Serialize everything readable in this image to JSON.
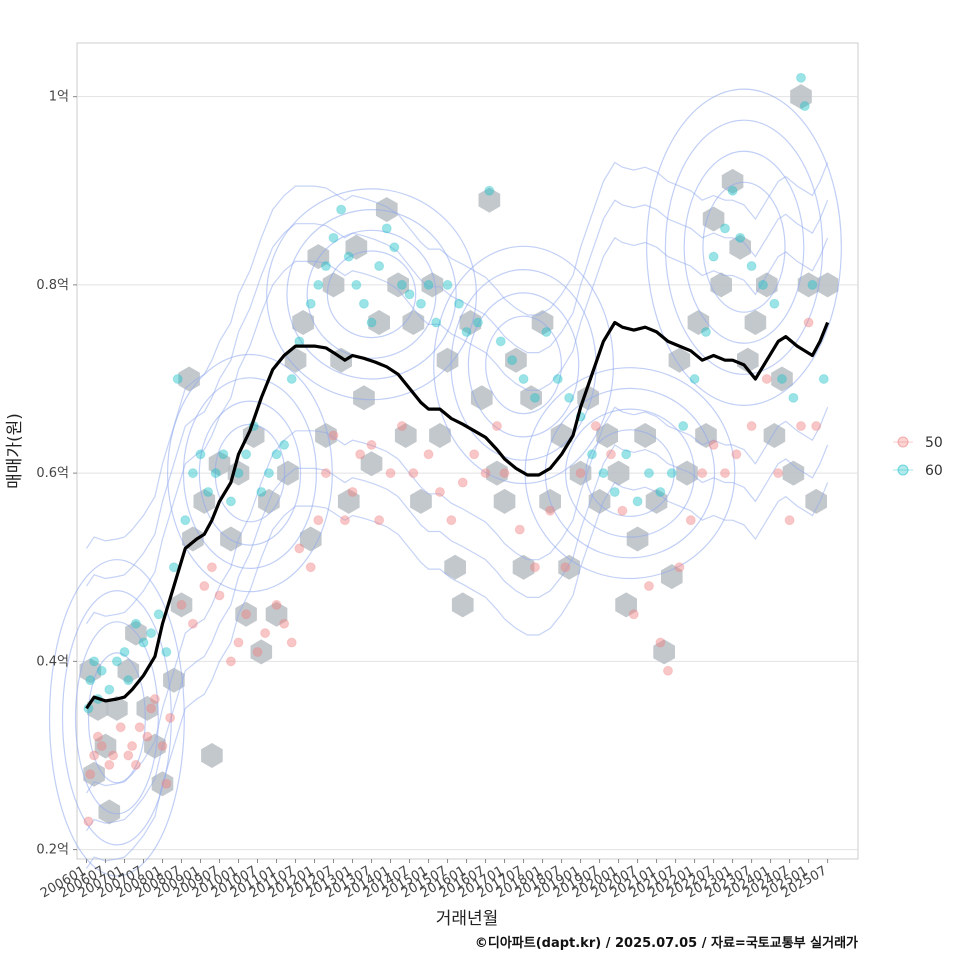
{
  "chart_data": {
    "type": "scatter",
    "title": "",
    "xlabel": "거래년월",
    "ylabel": "매매가(원)",
    "caption": "©디아파트(dapt.kr) / 2025.07.05 / 자료=국토교통부 실거래가",
    "x_tick_labels": [
      "200601",
      "200607",
      "200701",
      "200707",
      "200801",
      "200807",
      "200901",
      "200907",
      "201001",
      "201007",
      "201101",
      "201107",
      "201201",
      "201207",
      "201301",
      "201307",
      "201401",
      "201407",
      "201501",
      "201507",
      "201601",
      "201607",
      "201701",
      "201707",
      "201801",
      "201807",
      "201901",
      "201907",
      "202001",
      "202007",
      "202101",
      "202107",
      "202201",
      "202207",
      "202301",
      "202307",
      "202401",
      "202407",
      "202501",
      "202507"
    ],
    "y_ticks": [
      {
        "value": 0.2,
        "label": "0.2억"
      },
      {
        "value": 0.4,
        "label": "0.4억"
      },
      {
        "value": 0.6,
        "label": "0.6억"
      },
      {
        "value": 0.8,
        "label": "0.8억"
      },
      {
        "value": 1.0,
        "label": "1억"
      }
    ],
    "xlim": [
      2005.75,
      2026.3
    ],
    "ylim": [
      0.19,
      1.057
    ],
    "legend": {
      "position": "right",
      "entries": [
        {
          "label": "50",
          "color": "#f08080"
        },
        {
          "label": "60",
          "color": "#20c0c8"
        }
      ]
    },
    "colors": {
      "area_50": "#f08080",
      "area_60": "#20c0c8",
      "hexbin": "#b9bec4",
      "contour": "#8ea8ee",
      "trend": "#000000",
      "grid": "#e2e2e2",
      "frame": "#cccccc"
    },
    "trend_line": {
      "name": "moving-average",
      "x": [
        2006.0,
        2006.2,
        2006.5,
        2006.8,
        2007.0,
        2007.2,
        2007.5,
        2007.8,
        2008.0,
        2008.3,
        2008.6,
        2008.9,
        2009.1,
        2009.3,
        2009.5,
        2009.8,
        2010.0,
        2010.3,
        2010.6,
        2010.9,
        2011.2,
        2011.5,
        2011.8,
        2012.0,
        2012.3,
        2012.5,
        2012.8,
        2013.0,
        2013.3,
        2013.6,
        2013.9,
        2014.2,
        2014.5,
        2014.8,
        2015.0,
        2015.3,
        2015.6,
        2015.9,
        2016.2,
        2016.5,
        2016.8,
        2017.0,
        2017.3,
        2017.6,
        2017.9,
        2018.2,
        2018.5,
        2018.8,
        2019.0,
        2019.3,
        2019.6,
        2019.9,
        2020.1,
        2020.4,
        2020.7,
        2021.0,
        2021.3,
        2021.6,
        2021.9,
        2022.2,
        2022.5,
        2022.8,
        2023.0,
        2023.3,
        2023.6,
        2023.9,
        2024.2,
        2024.4,
        2024.7,
        2024.9,
        2025.1,
        2025.3,
        2025.5
      ],
      "y": [
        0.35,
        0.362,
        0.358,
        0.36,
        0.362,
        0.37,
        0.385,
        0.405,
        0.44,
        0.48,
        0.52,
        0.53,
        0.535,
        0.55,
        0.57,
        0.59,
        0.62,
        0.645,
        0.68,
        0.71,
        0.725,
        0.735,
        0.735,
        0.735,
        0.733,
        0.728,
        0.72,
        0.725,
        0.722,
        0.718,
        0.713,
        0.705,
        0.69,
        0.675,
        0.668,
        0.668,
        0.658,
        0.652,
        0.645,
        0.638,
        0.625,
        0.615,
        0.605,
        0.598,
        0.598,
        0.605,
        0.62,
        0.64,
        0.67,
        0.705,
        0.74,
        0.76,
        0.755,
        0.752,
        0.755,
        0.75,
        0.74,
        0.735,
        0.73,
        0.72,
        0.725,
        0.72,
        0.72,
        0.715,
        0.7,
        0.72,
        0.74,
        0.745,
        0.735,
        0.73,
        0.725,
        0.74,
        0.76
      ]
    },
    "contour_centers": [
      {
        "x": 2006.8,
        "y": 0.34,
        "rx": 0.9,
        "ry": 0.06
      },
      {
        "x": 2010.3,
        "y": 0.6,
        "rx": 1.1,
        "ry": 0.045
      },
      {
        "x": 2013.5,
        "y": 0.79,
        "rx": 1.4,
        "ry": 0.04
      },
      {
        "x": 2017.5,
        "y": 0.715,
        "rx": 1.2,
        "ry": 0.045
      },
      {
        "x": 2020.3,
        "y": 0.6,
        "rx": 1.4,
        "ry": 0.04
      },
      {
        "x": 2023.3,
        "y": 0.84,
        "rx": 1.3,
        "ry": 0.06
      }
    ],
    "series": [
      {
        "name": "50",
        "color": "#f08080",
        "points": [
          [
            2006.05,
            0.23
          ],
          [
            2006.1,
            0.28
          ],
          [
            2006.2,
            0.3
          ],
          [
            2006.3,
            0.32
          ],
          [
            2006.4,
            0.31
          ],
          [
            2006.6,
            0.29
          ],
          [
            2006.7,
            0.3
          ],
          [
            2006.9,
            0.33
          ],
          [
            2007.1,
            0.3
          ],
          [
            2007.2,
            0.31
          ],
          [
            2007.3,
            0.29
          ],
          [
            2007.4,
            0.33
          ],
          [
            2007.6,
            0.32
          ],
          [
            2007.7,
            0.35
          ],
          [
            2007.8,
            0.36
          ],
          [
            2008.0,
            0.31
          ],
          [
            2008.1,
            0.27
          ],
          [
            2008.2,
            0.34
          ],
          [
            2008.5,
            0.46
          ],
          [
            2008.8,
            0.44
          ],
          [
            2009.1,
            0.48
          ],
          [
            2009.3,
            0.5
          ],
          [
            2009.5,
            0.47
          ],
          [
            2009.8,
            0.4
          ],
          [
            2010.0,
            0.42
          ],
          [
            2010.2,
            0.45
          ],
          [
            2010.5,
            0.41
          ],
          [
            2010.7,
            0.43
          ],
          [
            2011.0,
            0.46
          ],
          [
            2011.2,
            0.44
          ],
          [
            2011.4,
            0.42
          ],
          [
            2011.6,
            0.52
          ],
          [
            2011.9,
            0.5
          ],
          [
            2012.1,
            0.55
          ],
          [
            2012.3,
            0.6
          ],
          [
            2012.5,
            0.64
          ],
          [
            2012.8,
            0.55
          ],
          [
            2013.0,
            0.58
          ],
          [
            2013.2,
            0.62
          ],
          [
            2013.5,
            0.63
          ],
          [
            2013.7,
            0.55
          ],
          [
            2014.0,
            0.6
          ],
          [
            2014.3,
            0.65
          ],
          [
            2014.6,
            0.6
          ],
          [
            2015.0,
            0.62
          ],
          [
            2015.3,
            0.58
          ],
          [
            2015.6,
            0.55
          ],
          [
            2015.9,
            0.59
          ],
          [
            2016.2,
            0.62
          ],
          [
            2016.5,
            0.6
          ],
          [
            2016.8,
            0.65
          ],
          [
            2017.0,
            0.6
          ],
          [
            2017.4,
            0.54
          ],
          [
            2017.8,
            0.5
          ],
          [
            2018.2,
            0.56
          ],
          [
            2018.6,
            0.5
          ],
          [
            2019.0,
            0.6
          ],
          [
            2019.4,
            0.65
          ],
          [
            2019.8,
            0.62
          ],
          [
            2020.1,
            0.56
          ],
          [
            2020.4,
            0.45
          ],
          [
            2020.8,
            0.48
          ],
          [
            2021.1,
            0.42
          ],
          [
            2021.3,
            0.39
          ],
          [
            2021.6,
            0.5
          ],
          [
            2021.9,
            0.55
          ],
          [
            2022.2,
            0.6
          ],
          [
            2022.5,
            0.63
          ],
          [
            2022.8,
            0.6
          ],
          [
            2023.1,
            0.62
          ],
          [
            2023.5,
            0.65
          ],
          [
            2023.9,
            0.7
          ],
          [
            2024.2,
            0.6
          ],
          [
            2024.5,
            0.55
          ],
          [
            2024.8,
            0.65
          ],
          [
            2025.0,
            0.76
          ],
          [
            2025.2,
            0.65
          ]
        ]
      },
      {
        "name": "60",
        "color": "#20c0c8",
        "points": [
          [
            2006.05,
            0.35
          ],
          [
            2006.1,
            0.38
          ],
          [
            2006.2,
            0.4
          ],
          [
            2006.3,
            0.36
          ],
          [
            2006.4,
            0.39
          ],
          [
            2006.6,
            0.37
          ],
          [
            2006.8,
            0.4
          ],
          [
            2007.0,
            0.41
          ],
          [
            2007.1,
            0.38
          ],
          [
            2007.3,
            0.44
          ],
          [
            2007.5,
            0.42
          ],
          [
            2007.7,
            0.43
          ],
          [
            2007.9,
            0.45
          ],
          [
            2008.1,
            0.41
          ],
          [
            2008.3,
            0.5
          ],
          [
            2008.4,
            0.7
          ],
          [
            2008.6,
            0.55
          ],
          [
            2008.8,
            0.6
          ],
          [
            2009.0,
            0.62
          ],
          [
            2009.2,
            0.58
          ],
          [
            2009.4,
            0.6
          ],
          [
            2009.6,
            0.62
          ],
          [
            2009.8,
            0.57
          ],
          [
            2010.0,
            0.6
          ],
          [
            2010.2,
            0.62
          ],
          [
            2010.4,
            0.65
          ],
          [
            2010.6,
            0.58
          ],
          [
            2010.8,
            0.6
          ],
          [
            2011.0,
            0.62
          ],
          [
            2011.2,
            0.63
          ],
          [
            2011.4,
            0.7
          ],
          [
            2011.6,
            0.74
          ],
          [
            2011.9,
            0.78
          ],
          [
            2012.1,
            0.8
          ],
          [
            2012.3,
            0.82
          ],
          [
            2012.5,
            0.85
          ],
          [
            2012.7,
            0.88
          ],
          [
            2012.9,
            0.83
          ],
          [
            2013.1,
            0.8
          ],
          [
            2013.3,
            0.78
          ],
          [
            2013.5,
            0.76
          ],
          [
            2013.7,
            0.82
          ],
          [
            2013.9,
            0.86
          ],
          [
            2014.1,
            0.84
          ],
          [
            2014.3,
            0.8
          ],
          [
            2014.5,
            0.79
          ],
          [
            2014.8,
            0.78
          ],
          [
            2015.0,
            0.8
          ],
          [
            2015.2,
            0.76
          ],
          [
            2015.5,
            0.8
          ],
          [
            2015.8,
            0.78
          ],
          [
            2016.0,
            0.75
          ],
          [
            2016.3,
            0.76
          ],
          [
            2016.6,
            0.9
          ],
          [
            2016.9,
            0.74
          ],
          [
            2017.2,
            0.72
          ],
          [
            2017.5,
            0.7
          ],
          [
            2017.8,
            0.68
          ],
          [
            2018.1,
            0.75
          ],
          [
            2018.4,
            0.7
          ],
          [
            2018.7,
            0.68
          ],
          [
            2019.0,
            0.66
          ],
          [
            2019.3,
            0.62
          ],
          [
            2019.6,
            0.6
          ],
          [
            2019.9,
            0.58
          ],
          [
            2020.2,
            0.62
          ],
          [
            2020.5,
            0.57
          ],
          [
            2020.8,
            0.6
          ],
          [
            2021.1,
            0.58
          ],
          [
            2021.4,
            0.6
          ],
          [
            2021.7,
            0.65
          ],
          [
            2022.0,
            0.7
          ],
          [
            2022.3,
            0.75
          ],
          [
            2022.5,
            0.83
          ],
          [
            2022.8,
            0.86
          ],
          [
            2023.0,
            0.9
          ],
          [
            2023.2,
            0.85
          ],
          [
            2023.5,
            0.82
          ],
          [
            2023.8,
            0.8
          ],
          [
            2024.1,
            0.78
          ],
          [
            2024.3,
            0.7
          ],
          [
            2024.6,
            0.68
          ],
          [
            2024.8,
            1.02
          ],
          [
            2024.9,
            0.99
          ],
          [
            2025.1,
            0.8
          ],
          [
            2025.4,
            0.7
          ]
        ]
      }
    ],
    "hexbins": [
      [
        2006.1,
        0.39
      ],
      [
        2006.3,
        0.35
      ],
      [
        2006.5,
        0.31
      ],
      [
        2006.2,
        0.28
      ],
      [
        2006.6,
        0.24
      ],
      [
        2006.8,
        0.35
      ],
      [
        2007.1,
        0.39
      ],
      [
        2007.3,
        0.43
      ],
      [
        2007.6,
        0.35
      ],
      [
        2007.8,
        0.31
      ],
      [
        2008.0,
        0.27
      ],
      [
        2008.3,
        0.38
      ],
      [
        2008.5,
        0.46
      ],
      [
        2008.7,
        0.7
      ],
      [
        2008.8,
        0.53
      ],
      [
        2009.1,
        0.57
      ],
      [
        2009.3,
        0.3
      ],
      [
        2009.5,
        0.61
      ],
      [
        2009.8,
        0.53
      ],
      [
        2010.0,
        0.6
      ],
      [
        2010.2,
        0.45
      ],
      [
        2010.4,
        0.64
      ],
      [
        2010.6,
        0.41
      ],
      [
        2010.8,
        0.57
      ],
      [
        2011.0,
        0.45
      ],
      [
        2011.3,
        0.6
      ],
      [
        2011.5,
        0.72
      ],
      [
        2011.7,
        0.76
      ],
      [
        2011.9,
        0.53
      ],
      [
        2012.1,
        0.83
      ],
      [
        2012.3,
        0.64
      ],
      [
        2012.5,
        0.8
      ],
      [
        2012.7,
        0.72
      ],
      [
        2012.9,
        0.57
      ],
      [
        2013.1,
        0.84
      ],
      [
        2013.3,
        0.68
      ],
      [
        2013.5,
        0.61
      ],
      [
        2013.7,
        0.76
      ],
      [
        2013.9,
        0.88
      ],
      [
        2014.2,
        0.8
      ],
      [
        2014.4,
        0.64
      ],
      [
        2014.6,
        0.76
      ],
      [
        2014.8,
        0.57
      ],
      [
        2015.1,
        0.8
      ],
      [
        2015.3,
        0.64
      ],
      [
        2015.5,
        0.72
      ],
      [
        2015.7,
        0.5
      ],
      [
        2015.9,
        0.46
      ],
      [
        2016.1,
        0.76
      ],
      [
        2016.4,
        0.68
      ],
      [
        2016.6,
        0.89
      ],
      [
        2016.8,
        0.6
      ],
      [
        2017.0,
        0.57
      ],
      [
        2017.3,
        0.72
      ],
      [
        2017.5,
        0.5
      ],
      [
        2017.7,
        0.68
      ],
      [
        2018.0,
        0.76
      ],
      [
        2018.2,
        0.57
      ],
      [
        2018.5,
        0.64
      ],
      [
        2018.7,
        0.5
      ],
      [
        2019.0,
        0.6
      ],
      [
        2019.2,
        0.68
      ],
      [
        2019.5,
        0.57
      ],
      [
        2019.7,
        0.64
      ],
      [
        2020.0,
        0.6
      ],
      [
        2020.2,
        0.46
      ],
      [
        2020.5,
        0.53
      ],
      [
        2020.7,
        0.64
      ],
      [
        2021.0,
        0.57
      ],
      [
        2021.2,
        0.41
      ],
      [
        2021.4,
        0.49
      ],
      [
        2021.6,
        0.72
      ],
      [
        2021.8,
        0.6
      ],
      [
        2022.1,
        0.76
      ],
      [
        2022.3,
        0.64
      ],
      [
        2022.5,
        0.87
      ],
      [
        2022.7,
        0.8
      ],
      [
        2023.0,
        0.91
      ],
      [
        2023.2,
        0.84
      ],
      [
        2023.4,
        0.72
      ],
      [
        2023.6,
        0.76
      ],
      [
        2023.9,
        0.8
      ],
      [
        2024.1,
        0.64
      ],
      [
        2024.3,
        0.7
      ],
      [
        2024.6,
        0.6
      ],
      [
        2024.8,
        1.0
      ],
      [
        2025.0,
        0.8
      ],
      [
        2025.2,
        0.57
      ],
      [
        2025.5,
        0.8
      ]
    ]
  }
}
